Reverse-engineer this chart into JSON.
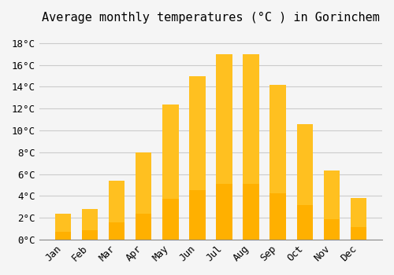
{
  "title": "Average monthly temperatures (°C ) in Gorinchem",
  "months": [
    "Jan",
    "Feb",
    "Mar",
    "Apr",
    "May",
    "Jun",
    "Jul",
    "Aug",
    "Sep",
    "Oct",
    "Nov",
    "Dec"
  ],
  "values": [
    2.4,
    2.8,
    5.4,
    8.0,
    12.4,
    15.0,
    17.0,
    17.0,
    14.2,
    10.6,
    6.3,
    3.8
  ],
  "bar_color_top": "#FFC020",
  "bar_color_bottom": "#FFB000",
  "ylim": [
    0,
    19
  ],
  "yticks": [
    0,
    2,
    4,
    6,
    8,
    10,
    12,
    14,
    16,
    18
  ],
  "background_color": "#F5F5F5",
  "grid_color": "#CCCCCC",
  "title_fontsize": 11,
  "tick_fontsize": 9,
  "bar_width": 0.6
}
